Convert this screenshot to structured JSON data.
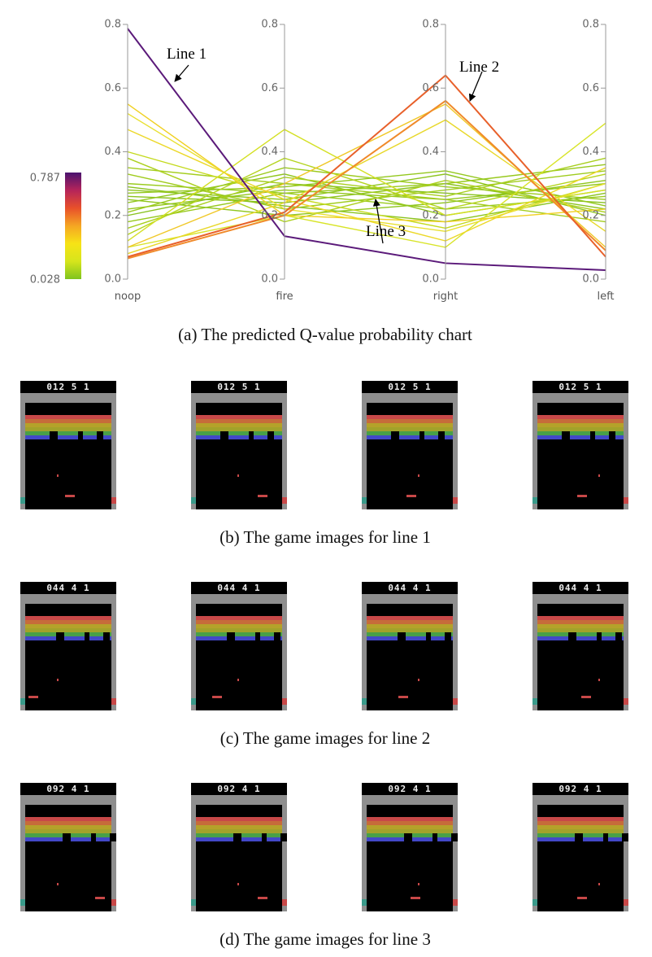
{
  "chart_data": {
    "type": "parallel",
    "categories": [
      "noop",
      "fire",
      "right",
      "left"
    ],
    "ylim": [
      0,
      0.8
    ],
    "yticks": [
      {
        "value": 0,
        "label": "0.0"
      },
      0.2,
      0.4,
      0.6,
      0.8
    ],
    "colorbar": {
      "min": 0.028,
      "max": 0.787,
      "colors": [
        "#7fc41e",
        "#d6e51c",
        "#f7e316",
        "#f5a623",
        "#e8502a",
        "#b5245a",
        "#4a1370"
      ]
    },
    "series": [
      {
        "color": "#96c81e",
        "values": [
          0.22,
          0.28,
          0.25,
          0.3
        ]
      },
      {
        "color": "#8cc31e",
        "values": [
          0.26,
          0.24,
          0.3,
          0.22
        ]
      },
      {
        "color": "#9acb1e",
        "values": [
          0.3,
          0.27,
          0.22,
          0.26
        ]
      },
      {
        "color": "#88c21e",
        "values": [
          0.2,
          0.3,
          0.27,
          0.24
        ]
      },
      {
        "color": "#a0cc1e",
        "values": [
          0.33,
          0.22,
          0.28,
          0.34
        ]
      },
      {
        "color": "#92c71e",
        "values": [
          0.24,
          0.33,
          0.2,
          0.28
        ]
      },
      {
        "color": "#8ec51e",
        "values": [
          0.28,
          0.25,
          0.33,
          0.2
        ]
      },
      {
        "color": "#98c91e",
        "values": [
          0.18,
          0.27,
          0.3,
          0.36
        ]
      },
      {
        "color": "#a4cd1e",
        "values": [
          0.35,
          0.3,
          0.25,
          0.18
        ]
      },
      {
        "color": "#90c61e",
        "values": [
          0.25,
          0.2,
          0.24,
          0.31
        ]
      },
      {
        "color": "#9cca1e",
        "values": [
          0.21,
          0.35,
          0.29,
          0.25
        ]
      },
      {
        "color": "#8ac31e",
        "values": [
          0.29,
          0.23,
          0.18,
          0.27
        ]
      },
      {
        "color": "#94c81e",
        "values": [
          0.27,
          0.29,
          0.34,
          0.23
        ]
      },
      {
        "color": "#a8cf1e",
        "values": [
          0.16,
          0.32,
          0.26,
          0.38
        ]
      },
      {
        "color": "#acd01e",
        "values": [
          0.38,
          0.18,
          0.31,
          0.21
        ]
      },
      {
        "color": "#b4d41e",
        "values": [
          0.14,
          0.38,
          0.22,
          0.33
        ]
      },
      {
        "color": "#c4da1e",
        "values": [
          0.4,
          0.26,
          0.16,
          0.3
        ]
      },
      {
        "color": "#d8e428",
        "values": [
          0.1,
          0.2,
          0.1,
          0.49
        ]
      },
      {
        "color": "#d4e024",
        "values": [
          0.12,
          0.47,
          0.2,
          0.28
        ]
      },
      {
        "color": "#e8e030",
        "values": [
          0.52,
          0.22,
          0.15,
          0.3
        ]
      },
      {
        "color": "#f0d020",
        "values": [
          0.55,
          0.2,
          0.18,
          0.22
        ]
      },
      {
        "color": "#ecd828",
        "values": [
          0.47,
          0.25,
          0.12,
          0.35
        ]
      },
      {
        "color": "#f0c828",
        "values": [
          0.1,
          0.3,
          0.55,
          0.1
        ]
      },
      {
        "color": "#e8d82a",
        "values": [
          0.08,
          0.24,
          0.5,
          0.15
        ]
      },
      {
        "color": "#f08a2a",
        "values": [
          0.065,
          0.2,
          0.56,
          0.09
        ]
      },
      {
        "color": "#e8602a",
        "values": [
          0.07,
          0.21,
          0.64,
          0.07
        ]
      },
      {
        "color": "#5b1a7a",
        "values": [
          0.787,
          0.135,
          0.05,
          0.028
        ]
      }
    ],
    "annotations": [
      "Line 1",
      "Line 2",
      "Line 3"
    ],
    "caption": "(a) The predicted Q-value probability chart"
  },
  "game_rows": [
    {
      "score": "012 5 1",
      "caption": "(b) The game images for line 1"
    },
    {
      "score": "044 4 1",
      "caption": "(c) The game images for line 2"
    },
    {
      "score": "092 4 1",
      "caption": "(d) The game images for line 3"
    }
  ]
}
